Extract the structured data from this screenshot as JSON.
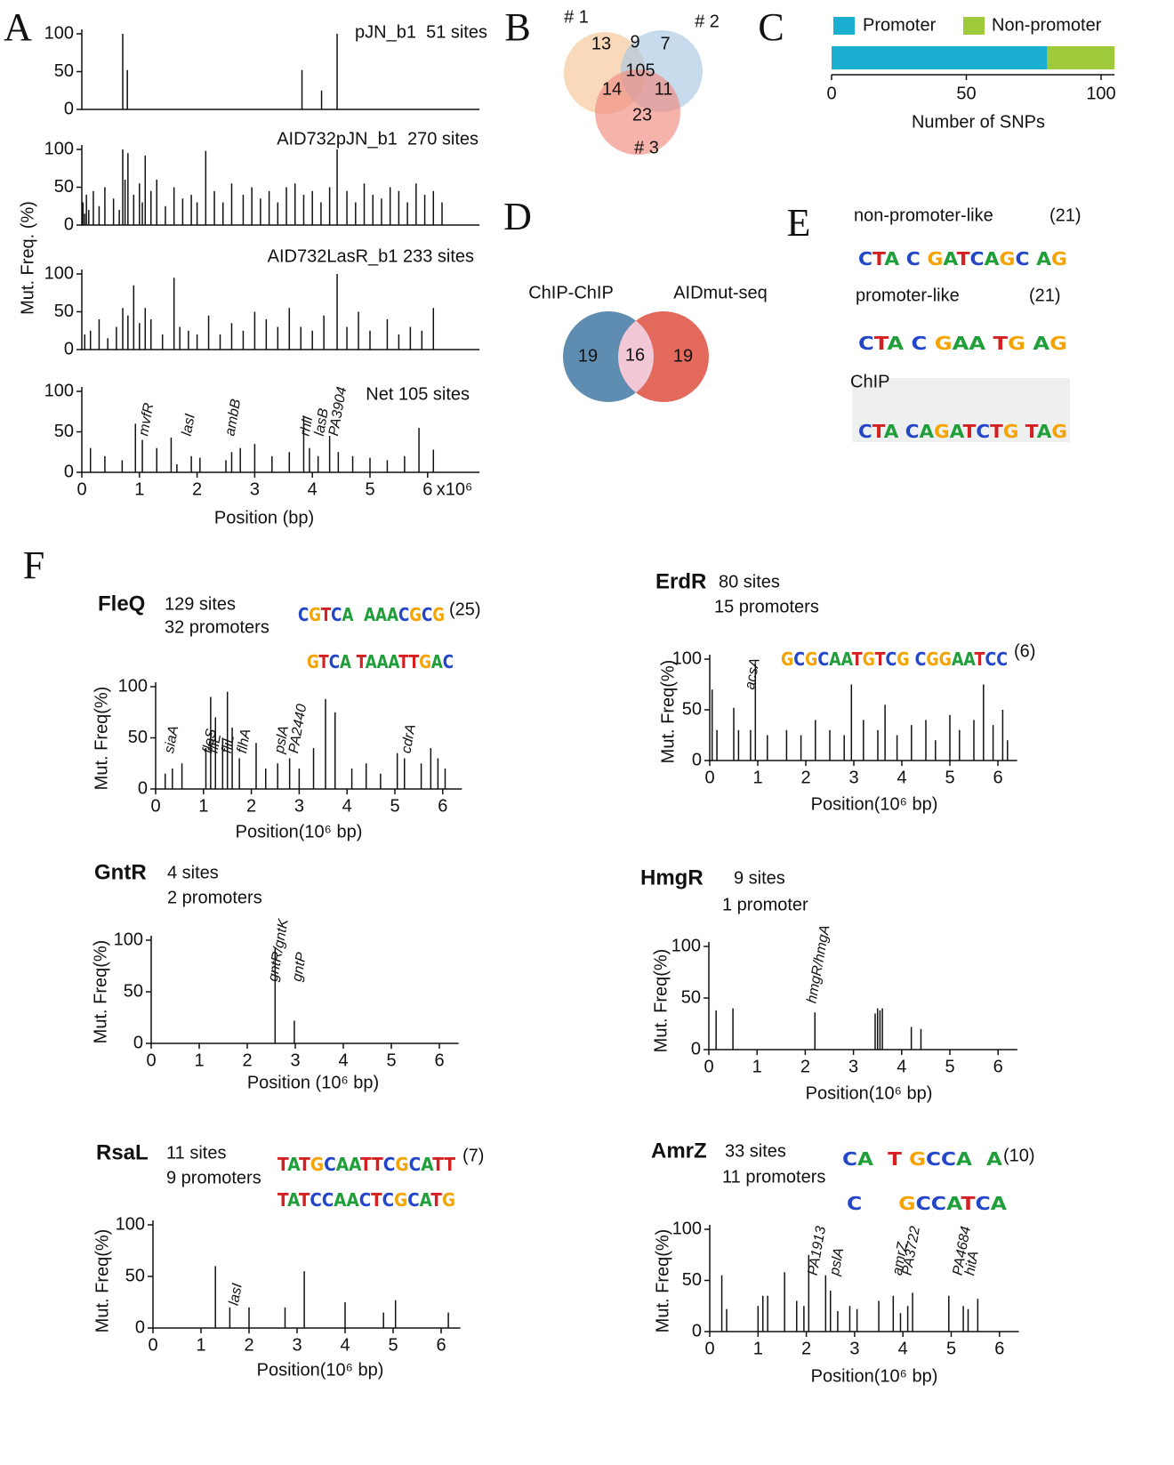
{
  "chart_data": [
    {
      "type": "spike",
      "panel": "A",
      "title": "pJN_b1  51 sites",
      "ylabel": "Mut. Freq. (%)",
      "color": "#111111",
      "xlim": [
        0,
        6.9
      ],
      "ylim": [
        0,
        100
      ],
      "yticks": [
        0,
        50,
        100
      ],
      "x": [
        0.71,
        0.79,
        3.82,
        4.16,
        4.43
      ],
      "values": [
        100,
        52,
        52,
        25,
        100
      ]
    },
    {
      "type": "spike",
      "title": "AID732pJN_b1  270 sites",
      "color": "#111111",
      "xlim": [
        0,
        6.9
      ],
      "ylim": [
        0,
        100
      ],
      "yticks": [
        0,
        50,
        100
      ],
      "x": [
        0.02,
        0.05,
        0.08,
        0.12,
        0.2,
        0.3,
        0.4,
        0.55,
        0.65,
        0.71,
        0.75,
        0.8,
        0.9,
        1.0,
        1.05,
        1.1,
        1.2,
        1.3,
        1.45,
        1.6,
        1.75,
        1.9,
        2.0,
        2.15,
        2.3,
        2.45,
        2.6,
        2.8,
        2.95,
        3.1,
        3.25,
        3.4,
        3.55,
        3.7,
        3.85,
        4.0,
        4.15,
        4.3,
        4.43,
        4.6,
        4.75,
        4.9,
        5.05,
        5.2,
        5.35,
        5.5,
        5.65,
        5.8,
        5.95,
        6.1,
        6.25
      ],
      "values": [
        30,
        15,
        40,
        20,
        45,
        25,
        50,
        35,
        20,
        100,
        60,
        95,
        40,
        55,
        30,
        92,
        45,
        60,
        25,
        50,
        35,
        40,
        30,
        98,
        45,
        30,
        55,
        40,
        50,
        35,
        45,
        30,
        50,
        55,
        40,
        45,
        30,
        50,
        100,
        45,
        30,
        55,
        40,
        35,
        50,
        45,
        30,
        55,
        40,
        45,
        30
      ]
    },
    {
      "type": "spike",
      "title": "AID732LasR_b1 233 sites",
      "color": "#111111",
      "xlim": [
        0,
        6.9
      ],
      "ylim": [
        0,
        100
      ],
      "yticks": [
        0,
        50,
        100
      ],
      "x": [
        0.05,
        0.15,
        0.3,
        0.45,
        0.6,
        0.71,
        0.8,
        0.9,
        1.0,
        1.1,
        1.2,
        1.4,
        1.6,
        1.7,
        1.85,
        2.0,
        2.2,
        2.4,
        2.6,
        2.8,
        3.0,
        3.2,
        3.4,
        3.6,
        3.8,
        4.0,
        4.2,
        4.43,
        4.6,
        4.8,
        5.0,
        5.3,
        5.5,
        5.7,
        5.9,
        6.1
      ],
      "values": [
        20,
        25,
        40,
        15,
        30,
        55,
        45,
        85,
        35,
        55,
        40,
        20,
        95,
        30,
        25,
        20,
        45,
        20,
        35,
        25,
        50,
        40,
        30,
        55,
        30,
        25,
        45,
        100,
        30,
        50,
        25,
        40,
        20,
        30,
        25,
        55
      ]
    },
    {
      "type": "spike",
      "title": "Net 105 sites",
      "xlabel": "Position (bp)",
      "x_unit": "x10⁶",
      "color": "#111111",
      "xlim": [
        0,
        6.9
      ],
      "ylim": [
        0,
        100
      ],
      "yticks": [
        0,
        50,
        100
      ],
      "xticks": [
        0,
        1,
        2,
        3,
        4,
        5,
        6
      ],
      "x": [
        0.15,
        0.4,
        0.7,
        0.93,
        1.05,
        1.3,
        1.55,
        1.65,
        1.9,
        2.05,
        2.5,
        2.6,
        2.75,
        3.0,
        3.3,
        3.6,
        3.85,
        3.95,
        4.1,
        4.3,
        4.45,
        4.7,
        5.0,
        5.3,
        5.6,
        5.85,
        6.1
      ],
      "values": [
        30,
        20,
        15,
        60,
        40,
        30,
        43,
        10,
        20,
        18,
        15,
        25,
        30,
        35,
        20,
        25,
        70,
        30,
        20,
        45,
        25,
        20,
        18,
        15,
        20,
        55,
        28
      ],
      "annotations": [
        {
          "text": "mvfR",
          "x": 1.0
        },
        {
          "text": "lasI",
          "x": 1.75
        },
        {
          "text": "ambB",
          "x": 2.5
        },
        {
          "text": "rhlI",
          "x": 3.8
        },
        {
          "text": "lasB",
          "x": 4.05
        },
        {
          "text": "PA3904",
          "x": 4.3
        }
      ]
    },
    {
      "type": "venn3",
      "panel": "B",
      "sets": [
        "# 1",
        "# 2",
        "# 3"
      ],
      "colors": [
        "#f6c595",
        "#a9c8e2",
        "#ef8a80"
      ],
      "values": [
        13,
        9,
        7,
        105,
        14,
        11,
        23
      ]
    },
    {
      "type": "stacked_bar",
      "panel": "C",
      "xlabel": "Number of SNPs",
      "xlim": [
        0,
        105
      ],
      "xticks": [
        0,
        50,
        100
      ],
      "series": [
        {
          "name": "Promoter",
          "color": "#1aaed0",
          "values": [
            80
          ]
        },
        {
          "name": "Non-promoter",
          "color": "#9fca3c",
          "values": [
            25
          ]
        }
      ]
    },
    {
      "type": "venn2",
      "panel": "D",
      "sets": [
        "ChIP-ChIP",
        "AIDmut-seq"
      ],
      "colors": [
        "#5f8db2",
        "#e2695c",
        "#f2c8d6"
      ],
      "values": [
        19,
        16,
        19
      ]
    },
    {
      "type": "logo",
      "panel": "E",
      "motifs": [
        {
          "name": "non-promoter-like",
          "count": "(21)",
          "sequence": "CTA C GATCAGC AG"
        },
        {
          "name": "promoter-like",
          "count": "(21)",
          "sequence": "CTA C GAA TG AG"
        },
        {
          "name": "ChIP",
          "sequence": "CTA CAGATCTG TAG"
        }
      ]
    },
    {
      "type": "spike",
      "panel": "F",
      "title": "FleQ",
      "sites": "129 sites",
      "promoters": "32 promoters",
      "motifs": [
        "CGTCA  AAACGCG",
        "GTCA TAAATTGAC"
      ],
      "motif_count": "(25)",
      "ylabel": "Mut. Freq(%)",
      "xlabel": "Position(10⁶ bp)",
      "color": "#111111",
      "xlim": [
        0,
        6.4
      ],
      "ylim": [
        0,
        100
      ],
      "yticks": [
        0,
        50,
        100
      ],
      "xticks": [
        0,
        1,
        2,
        3,
        4,
        5,
        6
      ],
      "x": [
        0.2,
        0.35,
        0.55,
        1.05,
        1.15,
        1.25,
        1.4,
        1.5,
        1.6,
        1.75,
        2.1,
        2.3,
        2.55,
        2.8,
        3.0,
        3.3,
        3.55,
        3.75,
        4.1,
        4.4,
        4.7,
        5.05,
        5.2,
        5.55,
        5.75,
        5.9,
        6.05
      ],
      "values": [
        15,
        20,
        25,
        40,
        90,
        70,
        50,
        95,
        60,
        30,
        45,
        20,
        25,
        30,
        20,
        40,
        88,
        75,
        20,
        25,
        15,
        35,
        30,
        25,
        40,
        30,
        20
      ],
      "annotations": [
        {
          "text": "siaA",
          "x": 0.2
        },
        {
          "text": "fleS",
          "x": 1.0
        },
        {
          "text": "fliE",
          "x": 1.12
        },
        {
          "text": "fliL",
          "x": 1.4
        },
        {
          "text": "flhA",
          "x": 1.72
        },
        {
          "text": "pslA",
          "x": 2.5
        },
        {
          "text": "PA2440",
          "x": 2.8
        },
        {
          "text": "cdrA",
          "x": 5.15
        }
      ]
    },
    {
      "type": "spike",
      "title": "ErdR",
      "sites": "80 sites",
      "promoters": "15 promoters",
      "motifs": [
        "GCGCAATGTCG CGGAATCC"
      ],
      "motif_count": "(6)",
      "ylabel": "Mut. Freq(%)",
      "xlabel": "Position(10⁶ bp)",
      "color": "#111111",
      "xlim": [
        0,
        6.4
      ],
      "ylim": [
        0,
        100
      ],
      "yticks": [
        0,
        50,
        100
      ],
      "xticks": [
        0,
        1,
        2,
        3,
        4,
        5,
        6
      ],
      "x": [
        0.05,
        0.15,
        0.5,
        0.6,
        0.85,
        0.95,
        1.2,
        1.6,
        1.9,
        2.2,
        2.5,
        2.8,
        2.95,
        3.2,
        3.5,
        3.65,
        3.9,
        4.2,
        4.5,
        4.7,
        5.0,
        5.2,
        5.5,
        5.7,
        5.9,
        6.1,
        6.2
      ],
      "values": [
        70,
        30,
        52,
        30,
        30,
        95,
        25,
        30,
        25,
        40,
        30,
        25,
        75,
        40,
        30,
        55,
        25,
        35,
        40,
        20,
        45,
        30,
        40,
        75,
        35,
        50,
        20
      ],
      "annotations": [
        {
          "text": "acsA",
          "x": 0.75
        }
      ]
    },
    {
      "type": "spike",
      "title": "GntR",
      "sites": "4 sites",
      "promoters": "2 promoters",
      "ylabel": "Mut. Freq(%)",
      "xlabel": "Position (10⁶ bp)",
      "color": "#111111",
      "xlim": [
        0,
        6.4
      ],
      "ylim": [
        0,
        100
      ],
      "yticks": [
        0,
        50,
        100
      ],
      "xticks": [
        0,
        1,
        2,
        3,
        4,
        5,
        6
      ],
      "x": [
        2.58,
        2.98
      ],
      "values": [
        93,
        22
      ],
      "annotations": [
        {
          "text": "gntR/gntK",
          "x": 2.45
        },
        {
          "text": "gntP",
          "x": 2.95
        }
      ]
    },
    {
      "type": "spike",
      "title": "HmgR",
      "sites": "9 sites",
      "promoters": "1 promoter",
      "ylabel": "Mut. Freq(%)",
      "xlabel": "Position(10⁶ bp)",
      "color": "#111111",
      "xlim": [
        0,
        6.4
      ],
      "ylim": [
        0,
        100
      ],
      "yticks": [
        0,
        50,
        100
      ],
      "xticks": [
        0,
        1,
        2,
        3,
        4,
        5,
        6
      ],
      "x": [
        0.15,
        0.5,
        2.2,
        3.45,
        3.5,
        3.55,
        3.6,
        4.2,
        4.4
      ],
      "values": [
        38,
        40,
        36,
        35,
        40,
        38,
        40,
        22,
        20
      ],
      "annotations": [
        {
          "text": "hmgR/hmgA",
          "x": 2.05
        }
      ]
    },
    {
      "type": "spike",
      "title": "RsaL",
      "sites": "11 sites",
      "promoters": "9 promoters",
      "motifs": [
        "TATGCAATTCGCATT",
        "TATCCAACTCGCATG"
      ],
      "motif_count": "(7)",
      "ylabel": "Mut. Freq(%)",
      "xlabel": "Position(10⁶ bp)",
      "color": "#111111",
      "xlim": [
        0,
        6.4
      ],
      "ylim": [
        0,
        100
      ],
      "yticks": [
        0,
        50,
        100
      ],
      "xticks": [
        0,
        1,
        2,
        3,
        4,
        5,
        6
      ],
      "x": [
        1.3,
        1.6,
        2.0,
        2.75,
        3.15,
        4.0,
        4.8,
        5.05,
        6.15
      ],
      "values": [
        60,
        20,
        20,
        20,
        55,
        25,
        15,
        27,
        15
      ],
      "annotations": [
        {
          "text": "lasI",
          "x": 1.6
        }
      ]
    },
    {
      "type": "spike",
      "title": "AmrZ",
      "sites": "33 sites",
      "promoters": "11 promoters",
      "motifs": [
        "CA  T GCCA  A",
        "C     GCCATCA"
      ],
      "motif_count": "(10)",
      "ylabel": "Mut. Freq(%)",
      "xlabel": "Position(10⁶ bp)",
      "color": "#111111",
      "xlim": [
        0,
        6.4
      ],
      "ylim": [
        0,
        100
      ],
      "yticks": [
        0,
        50,
        100
      ],
      "xticks": [
        0,
        1,
        2,
        3,
        4,
        5,
        6
      ],
      "x": [
        0.25,
        0.35,
        1.0,
        1.1,
        1.2,
        1.55,
        1.8,
        1.95,
        2.05,
        2.4,
        2.5,
        2.65,
        2.9,
        3.05,
        3.5,
        3.8,
        3.95,
        4.1,
        4.2,
        4.95,
        5.25,
        5.35,
        5.55
      ],
      "values": [
        55,
        22,
        25,
        35,
        35,
        58,
        30,
        25,
        75,
        55,
        40,
        20,
        25,
        22,
        30,
        35,
        18,
        25,
        38,
        35,
        25,
        22,
        32
      ],
      "annotations": [
        {
          "text": "PA1913",
          "x": 2.05
        },
        {
          "text": "pslA",
          "x": 2.5
        },
        {
          "text": "amrZ",
          "x": 3.8
        },
        {
          "text": "PA3722",
          "x": 4.0
        },
        {
          "text": "PA4684",
          "x": 5.05
        },
        {
          "text": "hitA",
          "x": 5.3
        }
      ]
    }
  ]
}
